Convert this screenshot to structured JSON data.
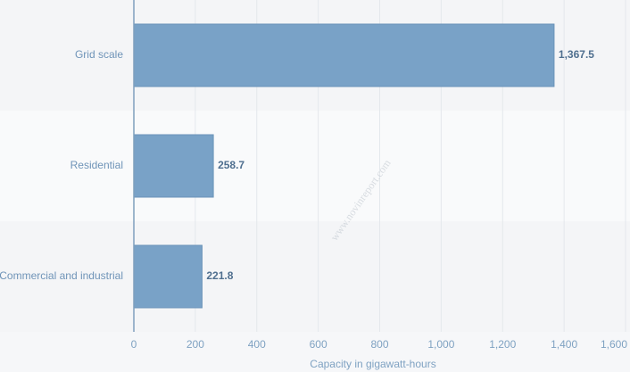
{
  "chart_data": {
    "type": "bar",
    "orientation": "horizontal",
    "categories": [
      "Grid scale",
      "Residential",
      "Commercial and industrial"
    ],
    "values": [
      1367.5,
      258.7,
      221.8
    ],
    "value_labels": [
      "1,367.5",
      "258.7",
      "221.8"
    ],
    "color": "#79a2c7",
    "xlim": [
      0,
      1600
    ],
    "xticks": [
      0,
      200,
      400,
      600,
      800,
      {
        "value": 1000,
        "label": "1,000"
      },
      {
        "value": 1200,
        "label": "1,200"
      },
      {
        "value": 1400,
        "label": "1,400"
      },
      {
        "value": 1600,
        "label": "1,600"
      }
    ],
    "xlabel": "Capacity in gigawatt-hours",
    "grid": true,
    "watermark": "www.novinreport.com"
  }
}
